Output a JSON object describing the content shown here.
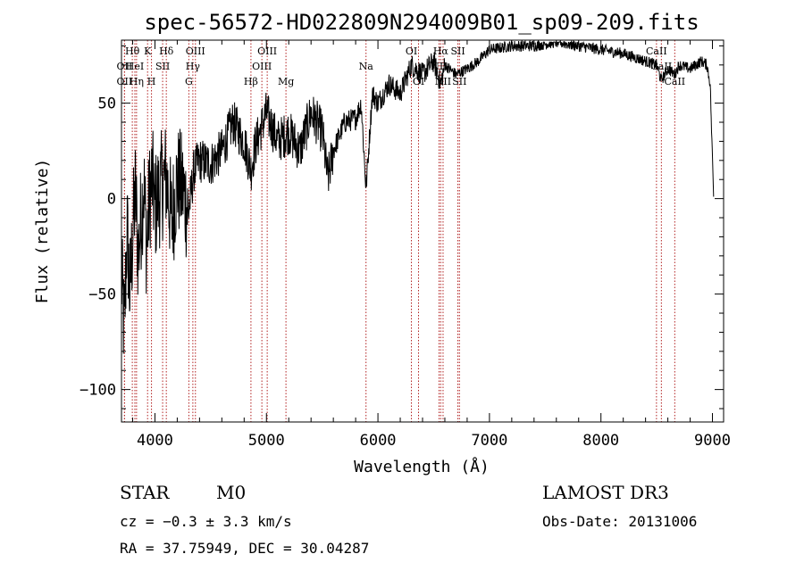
{
  "chart_data": {
    "type": "line",
    "title": "spec-56572-HD022809N294009B01_sp09-209.fits",
    "xlabel": "Wavelength (Å)",
    "ylabel": "Flux (relative)",
    "xlim": [
      3700,
      9100
    ],
    "ylim": [
      -117,
      83
    ],
    "xticks": [
      4000,
      5000,
      6000,
      7000,
      8000,
      9000
    ],
    "xtick_labels": [
      "4000",
      "5000",
      "6000",
      "7000",
      "8000",
      "9000"
    ],
    "yticks": [
      50,
      0,
      -50,
      -100
    ],
    "ytick_labels": [
      "50",
      "0",
      "−50",
      "−100"
    ],
    "series": [
      {
        "name": "spectrum",
        "x": [
          3700,
          3725,
          3750,
          3775,
          3800,
          3825,
          3850,
          3875,
          3900,
          3925,
          3950,
          3975,
          4000,
          4050,
          4100,
          4150,
          4200,
          4250,
          4300,
          4350,
          4400,
          4500,
          4600,
          4700,
          4800,
          4861,
          4900,
          5000,
          5100,
          5200,
          5300,
          5400,
          5500,
          5550,
          5600,
          5700,
          5800,
          5850,
          5893,
          5950,
          6000,
          6100,
          6200,
          6300,
          6400,
          6500,
          6563,
          6600,
          6700,
          6800,
          6900,
          7000,
          7200,
          7400,
          7600,
          7800,
          8000,
          8200,
          8400,
          8498,
          8542,
          8600,
          8662,
          8700,
          8800,
          8900,
          8950,
          8980,
          9000,
          9010
        ],
        "values": [
          -40,
          -70,
          -15,
          -50,
          -20,
          5,
          -30,
          -10,
          8,
          -25,
          0,
          10,
          -5,
          5,
          12,
          -12,
          10,
          5,
          -8,
          15,
          20,
          18,
          25,
          40,
          30,
          15,
          28,
          45,
          30,
          35,
          25,
          45,
          35,
          10,
          25,
          40,
          42,
          50,
          5,
          55,
          50,
          60,
          55,
          70,
          65,
          72,
          60,
          70,
          65,
          68,
          72,
          78,
          80,
          80,
          82,
          80,
          78,
          76,
          72,
          70,
          62,
          68,
          65,
          70,
          68,
          72,
          70,
          60,
          20,
          1
        ]
      }
    ],
    "lines": [
      {
        "label": "Hθ",
        "wl": 3797,
        "row": 1
      },
      {
        "label": "OII",
        "wl": 3727,
        "row": 2
      },
      {
        "label": "OII",
        "wl": 3727,
        "row": 3
      },
      {
        "label": "HeI",
        "wl": 3820,
        "row": 2
      },
      {
        "label": "Hη",
        "wl": 3835,
        "row": 3
      },
      {
        "label": "K",
        "wl": 3934,
        "row": 1
      },
      {
        "label": "H",
        "wl": 3969,
        "row": 3
      },
      {
        "label": "SII",
        "wl": 4069,
        "row": 2
      },
      {
        "label": "Hδ",
        "wl": 4102,
        "row": 1
      },
      {
        "label": "OIII",
        "wl": 4363,
        "row": 1
      },
      {
        "label": "Hγ",
        "wl": 4340,
        "row": 2
      },
      {
        "label": "G",
        "wl": 4304,
        "row": 3
      },
      {
        "label": "OIII",
        "wl": 5007,
        "row": 1
      },
      {
        "label": "OIII",
        "wl": 4959,
        "row": 2
      },
      {
        "label": "Hβ",
        "wl": 4861,
        "row": 3
      },
      {
        "label": "Mg",
        "wl": 5175,
        "row": 3
      },
      {
        "label": "Na",
        "wl": 5893,
        "row": 2
      },
      {
        "label": "OI",
        "wl": 6300,
        "row": 1
      },
      {
        "label": "OI",
        "wl": 6364,
        "row": 3
      },
      {
        "label": "Hα",
        "wl": 6563,
        "row": 1
      },
      {
        "label": "NII",
        "wl": 6548,
        "row": 2
      },
      {
        "label": "NII",
        "wl": 6584,
        "row": 3
      },
      {
        "label": "SII",
        "wl": 6717,
        "row": 1
      },
      {
        "label": "SII",
        "wl": 6731,
        "row": 3
      },
      {
        "label": "CaII",
        "wl": 8498,
        "row": 1
      },
      {
        "label": "CaII",
        "wl": 8542,
        "row": 2
      },
      {
        "label": "CaII",
        "wl": 8662,
        "row": 3
      }
    ]
  },
  "info": {
    "star_type": "STAR",
    "subclass": "M0",
    "cz": "cz = −0.3 ± 3.3 km/s",
    "radec": "RA =  37.75949, DEC =  30.04287",
    "survey": "LAMOST DR3",
    "obs_date": "Obs-Date: 20131006"
  },
  "colors": {
    "axis": "#000000",
    "spectrum": "#000000",
    "lines": "#b22222"
  }
}
